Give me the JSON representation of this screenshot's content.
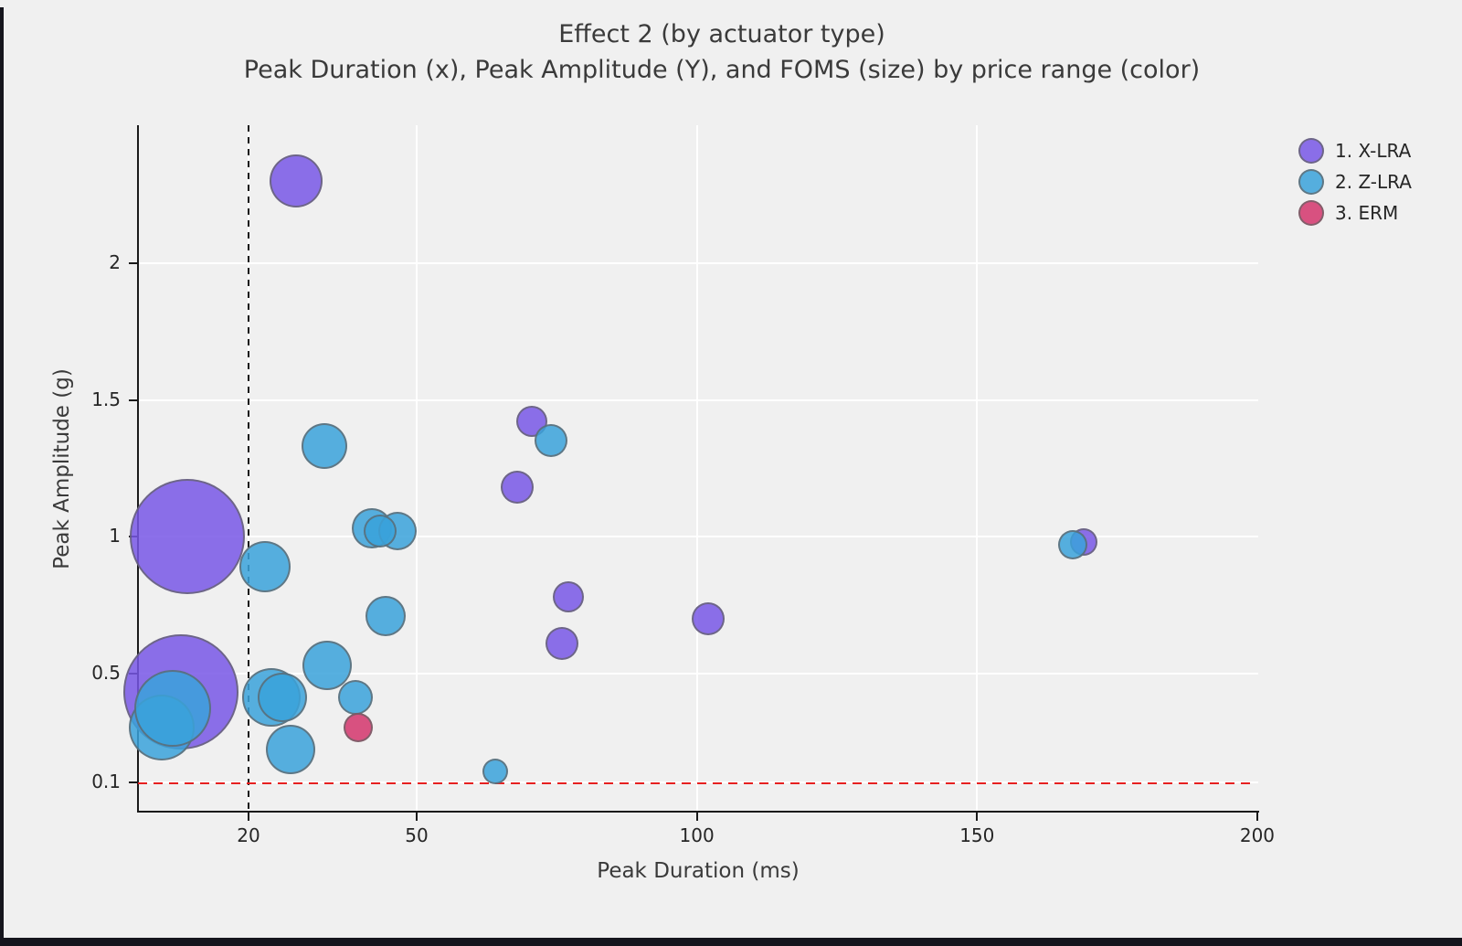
{
  "chart_data": {
    "type": "scatter",
    "subtype": "bubble",
    "title": "Effect 2 (by actuator type)",
    "subtitle": "Peak Duration (x), Peak Amplitude (Y), and FOMS (size) by price range (color)",
    "xlabel": "Peak Duration (ms)",
    "ylabel": "Peak Amplitude (g)",
    "x_ticks": [
      20,
      50,
      100,
      150,
      200
    ],
    "y_ticks": [
      0.1,
      0.5,
      1,
      1.5,
      2
    ],
    "xlim": [
      0,
      200
    ],
    "ylim": [
      0,
      2.5
    ],
    "grid": true,
    "legend_position": "top-right",
    "reference_lines": {
      "vline_x": 20,
      "vline_style": "black-dashed",
      "hline_y": 0.1,
      "hline_style": "red-dashed",
      "hline_color": "#E62020",
      "vline_color": "#1C1C1C"
    },
    "size_encodes": "FOMS",
    "color_encodes": "price range / actuator type",
    "series": [
      {
        "name": "1. X-LRA",
        "color": "#7857E6",
        "opacity": 0.85,
        "points": [
          {
            "x": 9,
            "y": 1.0,
            "r": 63
          },
          {
            "x": 8,
            "y": 0.43,
            "r": 63
          },
          {
            "x": 28.5,
            "y": 2.3,
            "r": 29
          },
          {
            "x": 76,
            "y": 0.61,
            "r": 18
          },
          {
            "x": 102,
            "y": 0.7,
            "r": 18
          },
          {
            "x": 68,
            "y": 1.18,
            "r": 18
          },
          {
            "x": 70.5,
            "y": 1.42,
            "r": 17
          },
          {
            "x": 77,
            "y": 0.78,
            "r": 17
          },
          {
            "x": 169,
            "y": 0.98,
            "r": 15
          }
        ]
      },
      {
        "name": "2. Z-LRA",
        "color": "#3AA2DB",
        "opacity": 0.85,
        "points": [
          {
            "x": 4.5,
            "y": 0.3,
            "r": 36
          },
          {
            "x": 6.5,
            "y": 0.37,
            "r": 42
          },
          {
            "x": 24,
            "y": 0.41,
            "r": 32
          },
          {
            "x": 23,
            "y": 0.89,
            "r": 28
          },
          {
            "x": 34,
            "y": 0.53,
            "r": 27
          },
          {
            "x": 27.5,
            "y": 0.22,
            "r": 27
          },
          {
            "x": 26,
            "y": 0.41,
            "r": 27
          },
          {
            "x": 33.5,
            "y": 1.33,
            "r": 25
          },
          {
            "x": 42,
            "y": 1.03,
            "r": 22
          },
          {
            "x": 44.5,
            "y": 0.71,
            "r": 22
          },
          {
            "x": 46.5,
            "y": 1.02,
            "r": 21
          },
          {
            "x": 39,
            "y": 0.41,
            "r": 19
          },
          {
            "x": 74,
            "y": 1.35,
            "r": 18
          },
          {
            "x": 43.5,
            "y": 1.02,
            "r": 18
          },
          {
            "x": 167,
            "y": 0.97,
            "r": 16
          },
          {
            "x": 64,
            "y": 0.14,
            "r": 14
          }
        ]
      },
      {
        "name": "3. ERM",
        "color": "#D4356C",
        "opacity": 0.85,
        "points": [
          {
            "x": 39.5,
            "y": 0.3,
            "r": 16
          }
        ]
      }
    ]
  },
  "header": {
    "title": "Effect 2 (by actuator type)",
    "subtitle": "Peak Duration (x), Peak Amplitude (Y), and FOMS (size) by price range (color)"
  },
  "axes": {
    "x_title": "Peak Duration (ms)",
    "y_title": "Peak Amplitude (g)",
    "x_tick_labels": [
      "20",
      "50",
      "100",
      "150",
      "200"
    ],
    "y_tick_labels": [
      "0.1",
      "0.5",
      "1",
      "1.5",
      "2"
    ]
  },
  "legend": {
    "items": [
      {
        "label": "1. X-LRA",
        "color": "#7857E6"
      },
      {
        "label": "2. Z-LRA",
        "color": "#3AA2DB"
      },
      {
        "label": "3. ERM",
        "color": "#D4356C"
      }
    ]
  },
  "colors": {
    "background": "#F0F0F0",
    "gridline": "#FFFFFF",
    "spine": "#1A1A1A",
    "bubble_stroke": "#626262",
    "hline": "#E62020"
  }
}
